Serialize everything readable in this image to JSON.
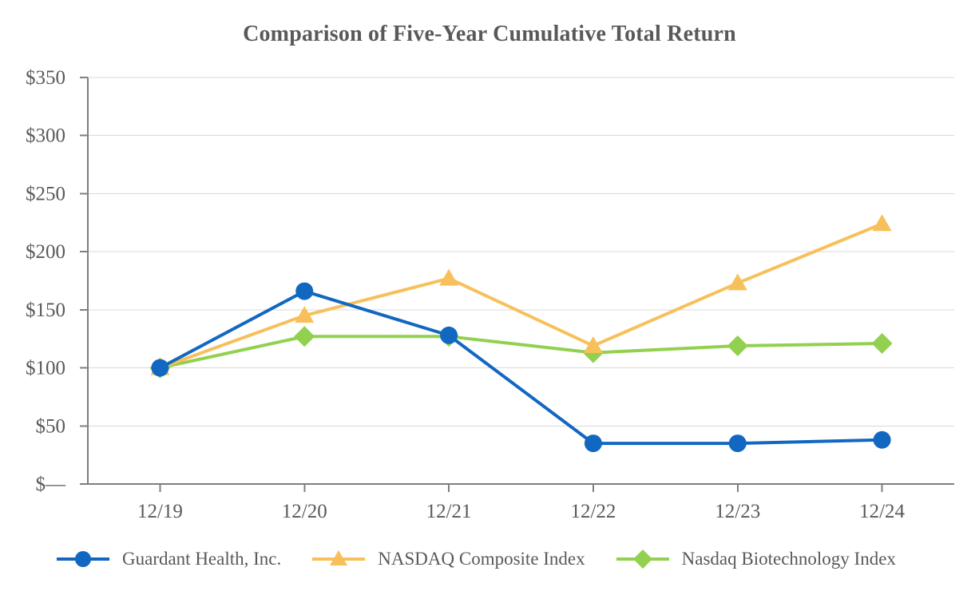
{
  "chart_data": {
    "type": "line",
    "title": "Comparison of Five-Year Cumulative Total Return",
    "categories": [
      "12/19",
      "12/20",
      "12/21",
      "12/22",
      "12/23",
      "12/24"
    ],
    "series": [
      {
        "name": "Guardant Health, Inc.",
        "marker": "circle",
        "color": "#1267C1",
        "values": [
          100,
          166,
          128,
          35,
          35,
          38
        ]
      },
      {
        "name": "NASDAQ Composite Index",
        "marker": "triangle",
        "color": "#F7C05A",
        "values": [
          100,
          145,
          177,
          119,
          173,
          224
        ]
      },
      {
        "name": "Nasdaq Biotechnology Index",
        "marker": "diamond",
        "color": "#92D050",
        "values": [
          100,
          127,
          127,
          113,
          119,
          121
        ]
      }
    ],
    "ylim": [
      0,
      350
    ],
    "y_tick_step": 50,
    "y_tick_labels": [
      "$350",
      "$300",
      "$250",
      "$200",
      "$150",
      "$100",
      "$50",
      "$—"
    ],
    "grid": true,
    "legend_position": "bottom",
    "colors": {
      "grid": "#D9D9D9",
      "axis": "#7F7F7F",
      "text": "#595959"
    }
  }
}
